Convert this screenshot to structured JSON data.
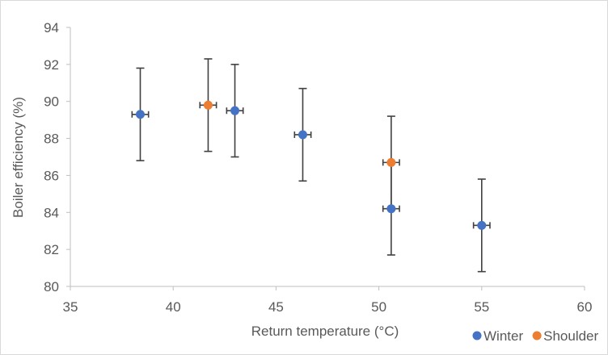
{
  "chart_data": {
    "type": "scatter",
    "xlabel": "Return temperature (°C)",
    "ylabel": "Boiler efficiency (%)",
    "xlim": [
      35,
      60
    ],
    "ylim": [
      80,
      94
    ],
    "x_ticks": [
      "35",
      "40",
      "45",
      "50",
      "55",
      "60"
    ],
    "y_ticks": [
      "80",
      "82",
      "84",
      "86",
      "88",
      "90",
      "92",
      "94"
    ],
    "grid": false,
    "legend_position": "bottom-right",
    "series": [
      {
        "name": "Winter",
        "color": "#4472c4",
        "points": [
          {
            "x": 38.4,
            "y": 89.3,
            "y_err": 2.5,
            "x_err": 0.4
          },
          {
            "x": 43.0,
            "y": 89.5,
            "y_err": 2.5,
            "x_err": 0.4
          },
          {
            "x": 46.3,
            "y": 88.2,
            "y_err": 2.5,
            "x_err": 0.4
          },
          {
            "x": 50.6,
            "y": 84.2,
            "y_err": 2.5,
            "x_err": 0.4
          },
          {
            "x": 55.0,
            "y": 83.3,
            "y_err": 2.5,
            "x_err": 0.4
          }
        ]
      },
      {
        "name": "Shoulder",
        "color": "#ed7d31",
        "points": [
          {
            "x": 41.7,
            "y": 89.8,
            "y_err": 2.5,
            "x_err": 0.4
          },
          {
            "x": 50.6,
            "y": 86.7,
            "y_err": 2.5,
            "x_err": 0.4
          }
        ]
      }
    ]
  }
}
